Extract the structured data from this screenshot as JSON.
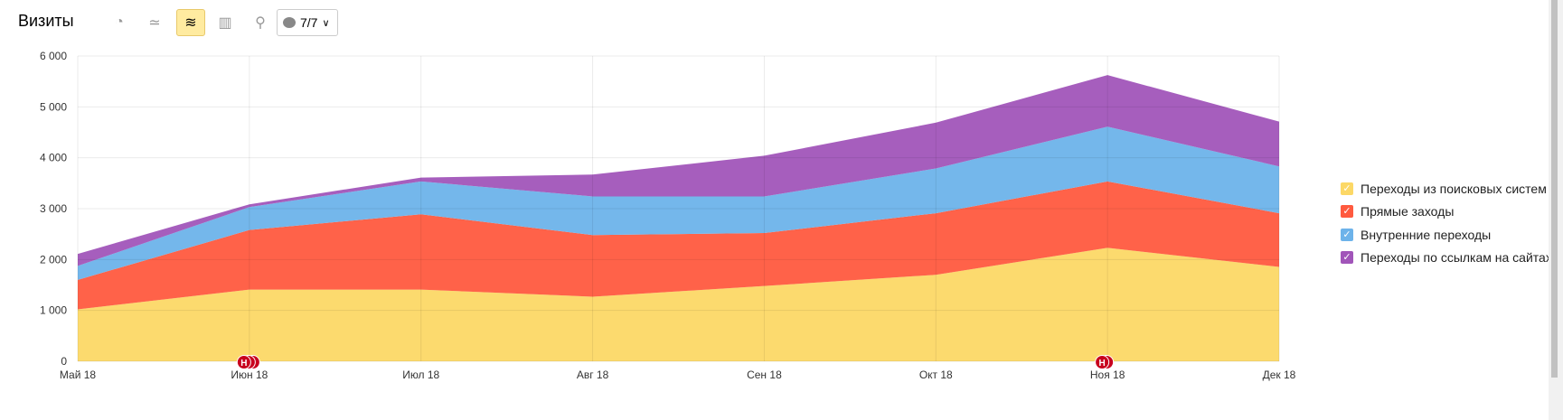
{
  "header": {
    "title": "Визиты",
    "buttons": [
      {
        "icon": "pie-chart-icon",
        "active": false
      },
      {
        "icon": "line-chart-icon",
        "active": false
      },
      {
        "icon": "area-chart-icon",
        "active": true
      },
      {
        "icon": "bar-chart-icon",
        "active": false
      },
      {
        "icon": "map-icon",
        "active": false
      }
    ],
    "annotations_dropdown": "7/7"
  },
  "chart_data": {
    "type": "area",
    "stacked": true,
    "categories": [
      "Май 18",
      "Июн 18",
      "Июл 18",
      "Авг 18",
      "Сен 18",
      "Окт 18",
      "Ноя 18",
      "Дек 18"
    ],
    "series": [
      {
        "name": "Переходы из поисковых систем",
        "color": "#fcd866",
        "values": [
          1020,
          1410,
          1410,
          1270,
          1480,
          1700,
          2230,
          1855
        ]
      },
      {
        "name": "Прямые заходы",
        "color": "#ff5a3f",
        "values": [
          580,
          1170,
          1480,
          1210,
          1040,
          1210,
          1305,
          1055
        ]
      },
      {
        "name": "Внутренние переходы",
        "color": "#6db3ea",
        "values": [
          275,
          450,
          645,
          760,
          720,
          880,
          1075,
          920
        ]
      },
      {
        "name": "Переходы по ссылкам на сайтах",
        "color": "#a155b9",
        "values": [
          235,
          55,
          75,
          430,
          800,
          900,
          1015,
          880
        ]
      }
    ],
    "yticks": [
      "0",
      "1 000",
      "2 000",
      "3 000",
      "4 000",
      "5 000",
      "6 000"
    ],
    "ylim": [
      0,
      6000
    ],
    "grid": true,
    "legend": "right",
    "annotations": [
      {
        "category": "Июн 18",
        "label": "Н",
        "count": 3
      },
      {
        "category": "Ноя 18",
        "label": "Н",
        "count": 2
      }
    ]
  }
}
